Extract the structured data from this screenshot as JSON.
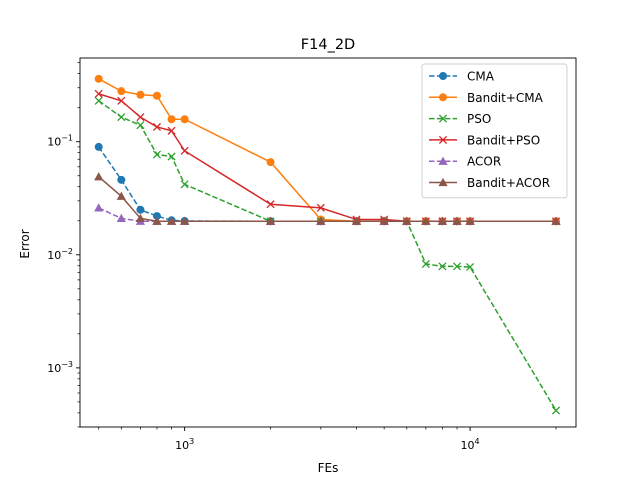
{
  "chart_data": {
    "type": "line",
    "title": "F14_2D",
    "xlabel": "FEs",
    "ylabel": "Error",
    "xscale": "log",
    "yscale": "log",
    "xlim": [
      430,
      23500
    ],
    "ylim": [
      0.0003,
      0.55
    ],
    "grid": false,
    "legend_position": "top-right",
    "x_major_ticks": [
      {
        "value": 1000,
        "base": "10",
        "exp": "3"
      },
      {
        "value": 10000,
        "base": "10",
        "exp": "4"
      }
    ],
    "y_major_ticks": [
      {
        "value": 0.001,
        "base": "10",
        "exp": "−3"
      },
      {
        "value": 0.01,
        "base": "10",
        "exp": "−2"
      },
      {
        "value": 0.1,
        "base": "10",
        "exp": "−1"
      }
    ],
    "series": [
      {
        "name": "CMA",
        "color": "#1f77b4",
        "dash": "dashed",
        "marker": "circle",
        "x": [
          500,
          600,
          700,
          800,
          900,
          1000,
          2000,
          3000,
          4000,
          5000,
          6000,
          7000,
          8000,
          9000,
          10000,
          20000
        ],
        "y": [
          0.09,
          0.046,
          0.025,
          0.022,
          0.0202,
          0.0199,
          0.0198,
          0.0198,
          0.0198,
          0.0198,
          0.0198,
          0.0198,
          0.0198,
          0.0198,
          0.0198,
          0.0198
        ]
      },
      {
        "name": "Bandit+CMA",
        "color": "#ff7f0e",
        "dash": "solid",
        "marker": "circle",
        "x": [
          500,
          600,
          700,
          800,
          900,
          1000,
          2000,
          3000,
          4000,
          5000,
          6000,
          7000,
          8000,
          9000,
          10000,
          20000
        ],
        "y": [
          0.36,
          0.28,
          0.26,
          0.255,
          0.158,
          0.158,
          0.066,
          0.0205,
          0.0198,
          0.0198,
          0.0198,
          0.0198,
          0.0198,
          0.0198,
          0.0198,
          0.0198
        ]
      },
      {
        "name": "PSO",
        "color": "#2ca02c",
        "dash": "dashed",
        "marker": "x",
        "x": [
          500,
          600,
          700,
          800,
          900,
          1000,
          2000,
          3000,
          4000,
          5000,
          6000,
          7000,
          8000,
          9000,
          10000,
          20000
        ],
        "y": [
          0.23,
          0.165,
          0.14,
          0.077,
          0.074,
          0.042,
          0.0198,
          0.0198,
          0.0198,
          0.0198,
          0.0198,
          0.0083,
          0.0079,
          0.0079,
          0.0078,
          0.00042
        ]
      },
      {
        "name": "Bandit+PSO",
        "color": "#d62728",
        "dash": "solid",
        "marker": "x",
        "x": [
          500,
          600,
          700,
          800,
          900,
          1000,
          2000,
          3000,
          4000,
          5000,
          6000,
          7000,
          8000,
          9000,
          10000,
          20000
        ],
        "y": [
          0.265,
          0.23,
          0.165,
          0.135,
          0.125,
          0.083,
          0.028,
          0.026,
          0.0205,
          0.0205,
          0.0198,
          0.0198,
          0.0198,
          0.0198,
          0.0198,
          0.0198
        ]
      },
      {
        "name": "ACOR",
        "color": "#9467bd",
        "dash": "dashed",
        "marker": "triangle",
        "x": [
          500,
          600,
          700,
          800,
          900,
          1000,
          2000,
          3000,
          4000,
          5000,
          6000,
          7000,
          8000,
          9000,
          10000,
          20000
        ],
        "y": [
          0.026,
          0.021,
          0.0198,
          0.0198,
          0.0198,
          0.0198,
          0.0198,
          0.0198,
          0.0198,
          0.0198,
          0.0198,
          0.0198,
          0.0198,
          0.0198,
          0.0198,
          0.0198
        ]
      },
      {
        "name": "Bandit+ACOR",
        "color": "#8c564b",
        "dash": "solid",
        "marker": "triangle",
        "x": [
          500,
          600,
          700,
          800,
          900,
          1000,
          2000,
          3000,
          4000,
          5000,
          6000,
          7000,
          8000,
          9000,
          10000,
          20000
        ],
        "y": [
          0.049,
          0.033,
          0.021,
          0.0198,
          0.0198,
          0.0198,
          0.0198,
          0.0198,
          0.0198,
          0.0198,
          0.0198,
          0.0198,
          0.0198,
          0.0198,
          0.0198,
          0.0198
        ]
      }
    ]
  }
}
